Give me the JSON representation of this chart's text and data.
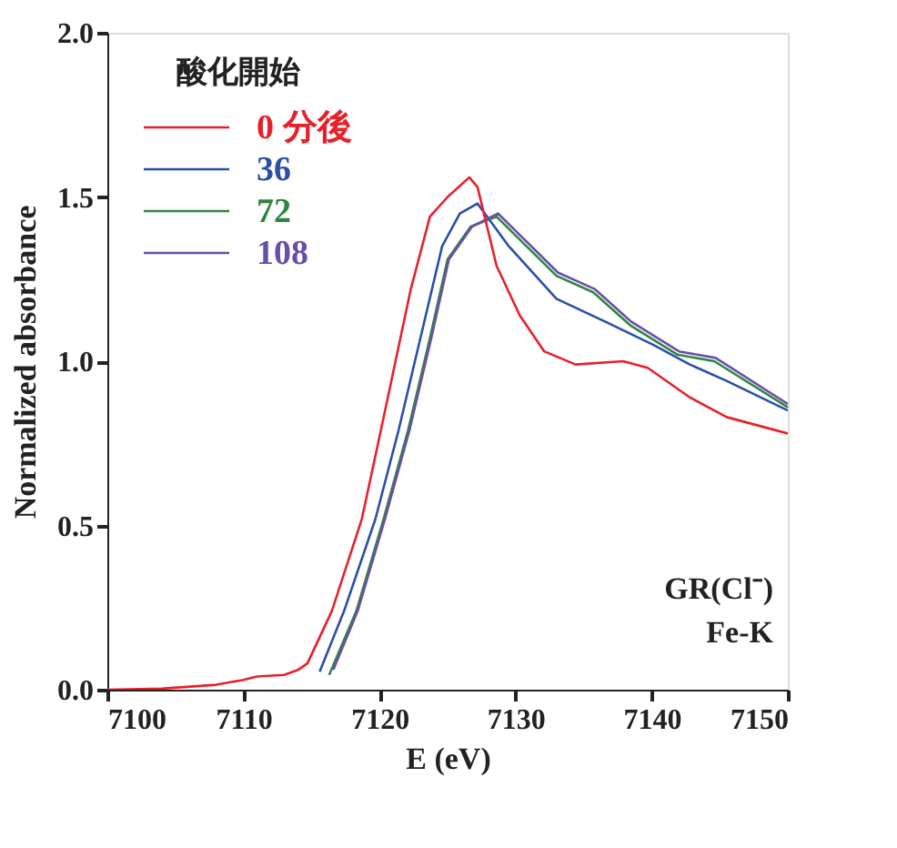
{
  "chart_data": {
    "type": "line",
    "xlabel": "E (eV)",
    "ylabel": "Normalized absorbance",
    "legend_title": "酸化開始",
    "xlim": [
      7100,
      7150
    ],
    "xticks": [
      {
        "value": 7100,
        "label": "7100"
      },
      {
        "value": 7110,
        "label": "7110"
      },
      {
        "value": 7120,
        "label": "7120"
      },
      {
        "value": 7130,
        "label": "7130"
      },
      {
        "value": 7140,
        "label": "7140"
      },
      {
        "value": 7150,
        "label": "7150"
      }
    ],
    "ylim": [
      0,
      2
    ],
    "yticks": [
      {
        "value": 0,
        "label": "0.0"
      },
      {
        "value": 0.5,
        "label": "0.5"
      },
      {
        "value": 1,
        "label": "1.0"
      },
      {
        "value": 1.5,
        "label": "1.5"
      },
      {
        "value": 2,
        "label": "2.0"
      }
    ],
    "legend": "top left",
    "grid": false,
    "marker": "none",
    "line_style": "solid",
    "annotations": [
      "GR(Cl⁻)",
      "Fe-K"
    ],
    "series": [
      {
        "name": "0 分後",
        "color": "#e8202a",
        "x": [
          7100,
          7104,
          7108,
          7110,
          7111,
          7113,
          7114,
          7114.7,
          7116.5,
          7118.7,
          7120.1,
          7122.3,
          7123.7,
          7125,
          7126.6,
          7127.2,
          7128.6,
          7130.3,
          7132.1,
          7134.4,
          7137.9,
          7139.7,
          7142.8,
          7145.5,
          7150
        ],
        "values": [
          0.0,
          0.003,
          0.015,
          0.03,
          0.04,
          0.045,
          0.06,
          0.08,
          0.24,
          0.52,
          0.79,
          1.22,
          1.44,
          1.5,
          1.56,
          1.53,
          1.29,
          1.14,
          1.03,
          0.99,
          1.0,
          0.98,
          0.89,
          0.83,
          0.78
        ]
      },
      {
        "name": "36",
        "color": "#2b4fa8",
        "x": [
          7115.6,
          7117.4,
          7119.7,
          7121.4,
          7123,
          7124.6,
          7125.9,
          7127.2,
          7129.5,
          7133,
          7136.6,
          7140.1,
          7142.8,
          7145.5,
          7150
        ],
        "values": [
          0.055,
          0.24,
          0.52,
          0.79,
          1.07,
          1.35,
          1.45,
          1.48,
          1.35,
          1.19,
          1.12,
          1.05,
          0.99,
          0.94,
          0.85
        ]
      },
      {
        "name": "72",
        "color": "#2e8540",
        "x": [
          7116.3,
          7118.3,
          7120.3,
          7122.1,
          7123.7,
          7125,
          7126.7,
          7128.6,
          7130.8,
          7133,
          7135.7,
          7138.4,
          7141.9,
          7144.6,
          7150
        ],
        "values": [
          0.045,
          0.24,
          0.52,
          0.79,
          1.07,
          1.31,
          1.41,
          1.44,
          1.35,
          1.26,
          1.21,
          1.11,
          1.02,
          1.0,
          0.86
        ]
      },
      {
        "name": "108",
        "color": "#6a4fa8",
        "x": [
          7116.6,
          7118.4,
          7120.4,
          7122.2,
          7123.8,
          7125.1,
          7126.8,
          7128.7,
          7130.9,
          7133.1,
          7135.8,
          7138.5,
          7142,
          7144.7,
          7150
        ],
        "values": [
          0.06,
          0.24,
          0.52,
          0.79,
          1.07,
          1.31,
          1.41,
          1.45,
          1.36,
          1.27,
          1.22,
          1.12,
          1.03,
          1.01,
          0.87
        ]
      }
    ]
  }
}
